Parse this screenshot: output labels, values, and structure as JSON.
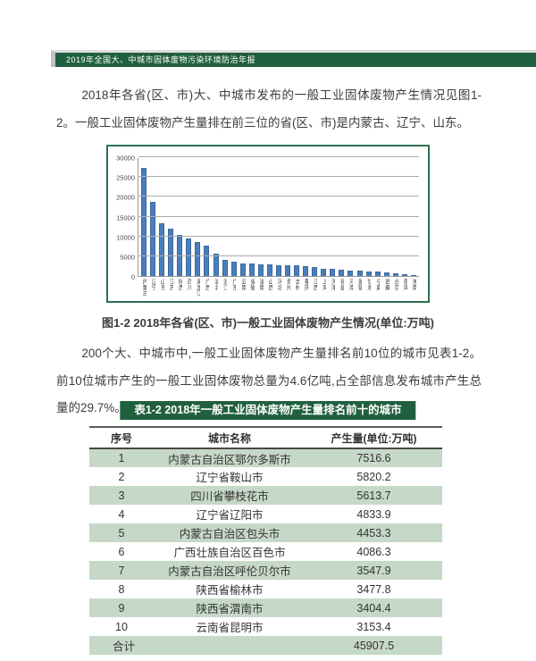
{
  "header": {
    "title": "2019年全国大、中城市固体废物污染环境防治年报"
  },
  "paragraphs": {
    "p1": "2018年各省(区、市)大、中城市发布的一般工业固体废物产生情况见图1-2。一般工业固体废物产生量排在前三位的省(区、市)是内蒙古、辽宁、山东。",
    "p2": "200个大、中城市中,一般工业固体废物产生量排名前10位的城市见表1-2。前10位城市产生的一般工业固体废物总量为4.6亿吨,占全部信息发布城市产生总量的29.7%。"
  },
  "figure_caption": "图1-2 2018年各省(区、市)一般工业固体废物产生情况(单位:万吨)",
  "chart_data": {
    "type": "bar",
    "title": "图1-2 2018年各省(区、市)一般工业固体废物产生情况(单位:万吨)",
    "xlabel": "",
    "ylabel": "",
    "ylim": [
      0,
      30000
    ],
    "yticks": [
      0,
      5000,
      10000,
      15000,
      20000,
      25000,
      30000
    ],
    "grid": true,
    "legend": "none",
    "bar_color": "#4a7ebb",
    "categories": [
      "内蒙古",
      "辽宁",
      "山东",
      "江苏",
      "陕西",
      "四川",
      "黑龙江",
      "广西",
      "湖北",
      "浙江",
      "广东",
      "云南",
      "安徽",
      "湖南",
      "山西",
      "河北",
      "贵州",
      "吉林",
      "重庆",
      "江西",
      "上海",
      "天津",
      "福建",
      "河南",
      "新疆",
      "甘肃",
      "宁夏",
      "西藏",
      "北京",
      "青海",
      "海南"
    ],
    "values": [
      27200,
      18700,
      13200,
      12000,
      10300,
      9400,
      8500,
      7700,
      5700,
      4100,
      3600,
      3250,
      3200,
      2950,
      2900,
      2800,
      2750,
      2700,
      2550,
      2350,
      1800,
      1700,
      1550,
      1450,
      1400,
      1200,
      1050,
      1000,
      750,
      500,
      150
    ]
  },
  "table": {
    "title": "表1-2 2018年一般工业固体废物产生量排名前十的城市",
    "columns": [
      "序号",
      "城市名称",
      "产生量(单位:万吨)"
    ],
    "rows": [
      [
        "1",
        "内蒙古自治区鄂尔多斯市",
        "7516.6"
      ],
      [
        "2",
        "辽宁省鞍山市",
        "5820.2"
      ],
      [
        "3",
        "四川省攀枝花市",
        "5613.7"
      ],
      [
        "4",
        "辽宁省辽阳市",
        "4833.9"
      ],
      [
        "5",
        "内蒙古自治区包头市",
        "4453.3"
      ],
      [
        "6",
        "广西壮族自治区百色市",
        "4086.3"
      ],
      [
        "7",
        "内蒙古自治区呼伦贝尔市",
        "3547.9"
      ],
      [
        "8",
        "陕西省榆林市",
        "3477.8"
      ],
      [
        "9",
        "陕西省渭南市",
        "3404.4"
      ],
      [
        "10",
        "云南省昆明市",
        "3153.4"
      ]
    ],
    "total_label": "合计",
    "total_value": "45907.5"
  },
  "colors": {
    "accent_green": "#20603e",
    "chart_border_green": "#2f7050",
    "row_stripe_green": "#c6d9c8",
    "bar_blue": "#4a7ebb",
    "text": "#3c3c3c"
  }
}
